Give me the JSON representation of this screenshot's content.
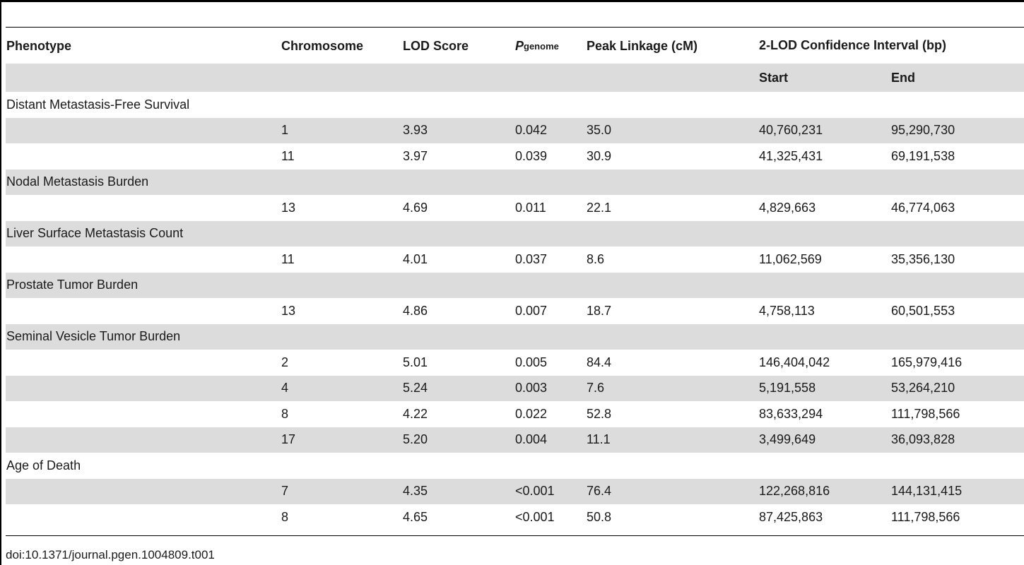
{
  "headers": {
    "phenotype": "Phenotype",
    "chromosome": "Chromosome",
    "lod": "LOD Score",
    "p_main": "P",
    "p_sub": "genome",
    "peak": "Peak Linkage (cM)",
    "ci": "2-LOD Confidence Interval (bp)",
    "start": "Start",
    "end": "End"
  },
  "groups": [
    {
      "name": "Distant Metastasis-Free Survival",
      "rows": [
        {
          "chr": "1",
          "lod": "3.93",
          "p": "0.042",
          "peak": "35.0",
          "start": "40,760,231",
          "end": "95,290,730"
        },
        {
          "chr": "11",
          "lod": "3.97",
          "p": "0.039",
          "peak": "30.9",
          "start": "41,325,431",
          "end": "69,191,538"
        }
      ]
    },
    {
      "name": "Nodal Metastasis Burden",
      "rows": [
        {
          "chr": "13",
          "lod": "4.69",
          "p": "0.011",
          "peak": "22.1",
          "start": "4,829,663",
          "end": "46,774,063"
        }
      ]
    },
    {
      "name": "Liver Surface Metastasis Count",
      "rows": [
        {
          "chr": "11",
          "lod": "4.01",
          "p": "0.037",
          "peak": "8.6",
          "start": "11,062,569",
          "end": "35,356,130"
        }
      ]
    },
    {
      "name": "Prostate Tumor Burden",
      "rows": [
        {
          "chr": "13",
          "lod": "4.86",
          "p": "0.007",
          "peak": "18.7",
          "start": "4,758,113",
          "end": "60,501,553"
        }
      ]
    },
    {
      "name": "Seminal Vesicle Tumor Burden",
      "rows": [
        {
          "chr": "2",
          "lod": "5.01",
          "p": "0.005",
          "peak": "84.4",
          "start": "146,404,042",
          "end": "165,979,416"
        },
        {
          "chr": "4",
          "lod": "5.24",
          "p": "0.003",
          "peak": "7.6",
          "start": "5,191,558",
          "end": "53,264,210"
        },
        {
          "chr": "8",
          "lod": "4.22",
          "p": "0.022",
          "peak": "52.8",
          "start": "83,633,294",
          "end": "111,798,566"
        },
        {
          "chr": "17",
          "lod": "5.20",
          "p": "0.004",
          "peak": "11.1",
          "start": "3,499,649",
          "end": "36,093,828"
        }
      ]
    },
    {
      "name": "Age of Death",
      "rows": [
        {
          "chr": "7",
          "lod": "4.35",
          "p": "<0.001",
          "peak": "76.4",
          "start": "122,268,816",
          "end": "144,131,415"
        },
        {
          "chr": "8",
          "lod": "4.65",
          "p": "<0.001",
          "peak": "50.8",
          "start": "87,425,863",
          "end": "111,798,566"
        }
      ]
    }
  ],
  "footer": {
    "doi": "doi:10.1371/journal.pgen.1004809.t001"
  }
}
